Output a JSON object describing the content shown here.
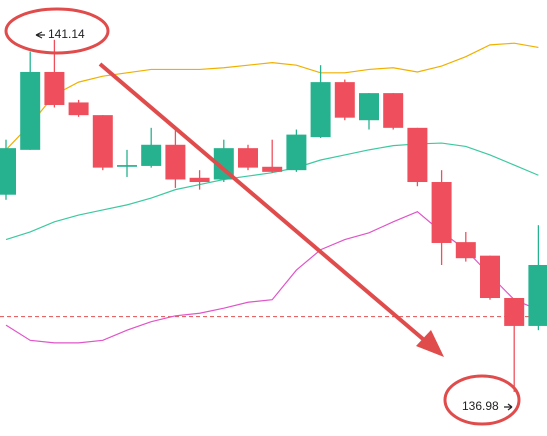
{
  "chart_data": {
    "type": "candlestick",
    "open": [
      139.31,
      139.84,
      140.76,
      140.4,
      140.25,
      139.64,
      139.65,
      139.9,
      139.51,
      139.49,
      139.86,
      139.64,
      139.6,
      139.99,
      140.64,
      140.19,
      140.51,
      140.1,
      139.46,
      138.75,
      138.59,
      138.09,
      137.76
    ],
    "high": [
      139.96,
      141.0,
      141.14,
      140.43,
      140.25,
      139.84,
      140.1,
      140.08,
      139.6,
      139.96,
      139.9,
      139.96,
      140.08,
      140.84,
      140.67,
      140.51,
      140.51,
      140.1,
      139.6,
      138.87,
      138.59,
      138.09,
      138.95
    ],
    "low": [
      139.25,
      139.84,
      140.34,
      140.23,
      139.6,
      139.52,
      139.63,
      139.39,
      139.37,
      139.46,
      139.6,
      139.57,
      139.58,
      139.98,
      140.19,
      140.08,
      140.08,
      139.41,
      138.48,
      138.52,
      138.07,
      136.98,
      137.71
    ],
    "close": [
      139.86,
      140.76,
      140.37,
      140.25,
      139.63,
      139.66,
      139.9,
      139.49,
      139.46,
      139.86,
      139.63,
      139.58,
      140.02,
      140.64,
      140.22,
      140.51,
      140.1,
      139.46,
      138.74,
      138.56,
      138.09,
      137.76,
      138.48
    ],
    "up_color": "#26b28f",
    "down_color": "#ef4f5c",
    "bands": [
      {
        "color": "#f0b000",
        "values": [
          139.84,
          140.14,
          140.49,
          140.64,
          140.71,
          140.75,
          140.79,
          140.79,
          140.79,
          140.81,
          140.84,
          140.87,
          140.84,
          140.75,
          140.75,
          140.79,
          140.81,
          140.76,
          140.83,
          140.94,
          141.08,
          141.1,
          141.05
        ]
      },
      {
        "color": "#3cc9a0",
        "values": [
          138.78,
          138.87,
          138.99,
          139.07,
          139.13,
          139.19,
          139.27,
          139.37,
          139.43,
          139.49,
          139.53,
          139.57,
          139.63,
          139.72,
          139.78,
          139.84,
          139.89,
          139.91,
          139.92,
          139.88,
          139.78,
          139.66,
          139.54
        ]
      },
      {
        "color": "#e055c8",
        "values": [
          137.77,
          137.59,
          137.56,
          137.56,
          137.59,
          137.71,
          137.81,
          137.88,
          137.91,
          137.97,
          138.04,
          138.07,
          138.42,
          138.66,
          138.78,
          138.86,
          138.99,
          139.11,
          138.87,
          138.66,
          138.36,
          138.07,
          137.95
        ]
      }
    ],
    "price_line": 137.87,
    "price_line_color": "#e05050",
    "ylim": [
      136.46,
      141.61
    ]
  }
}
